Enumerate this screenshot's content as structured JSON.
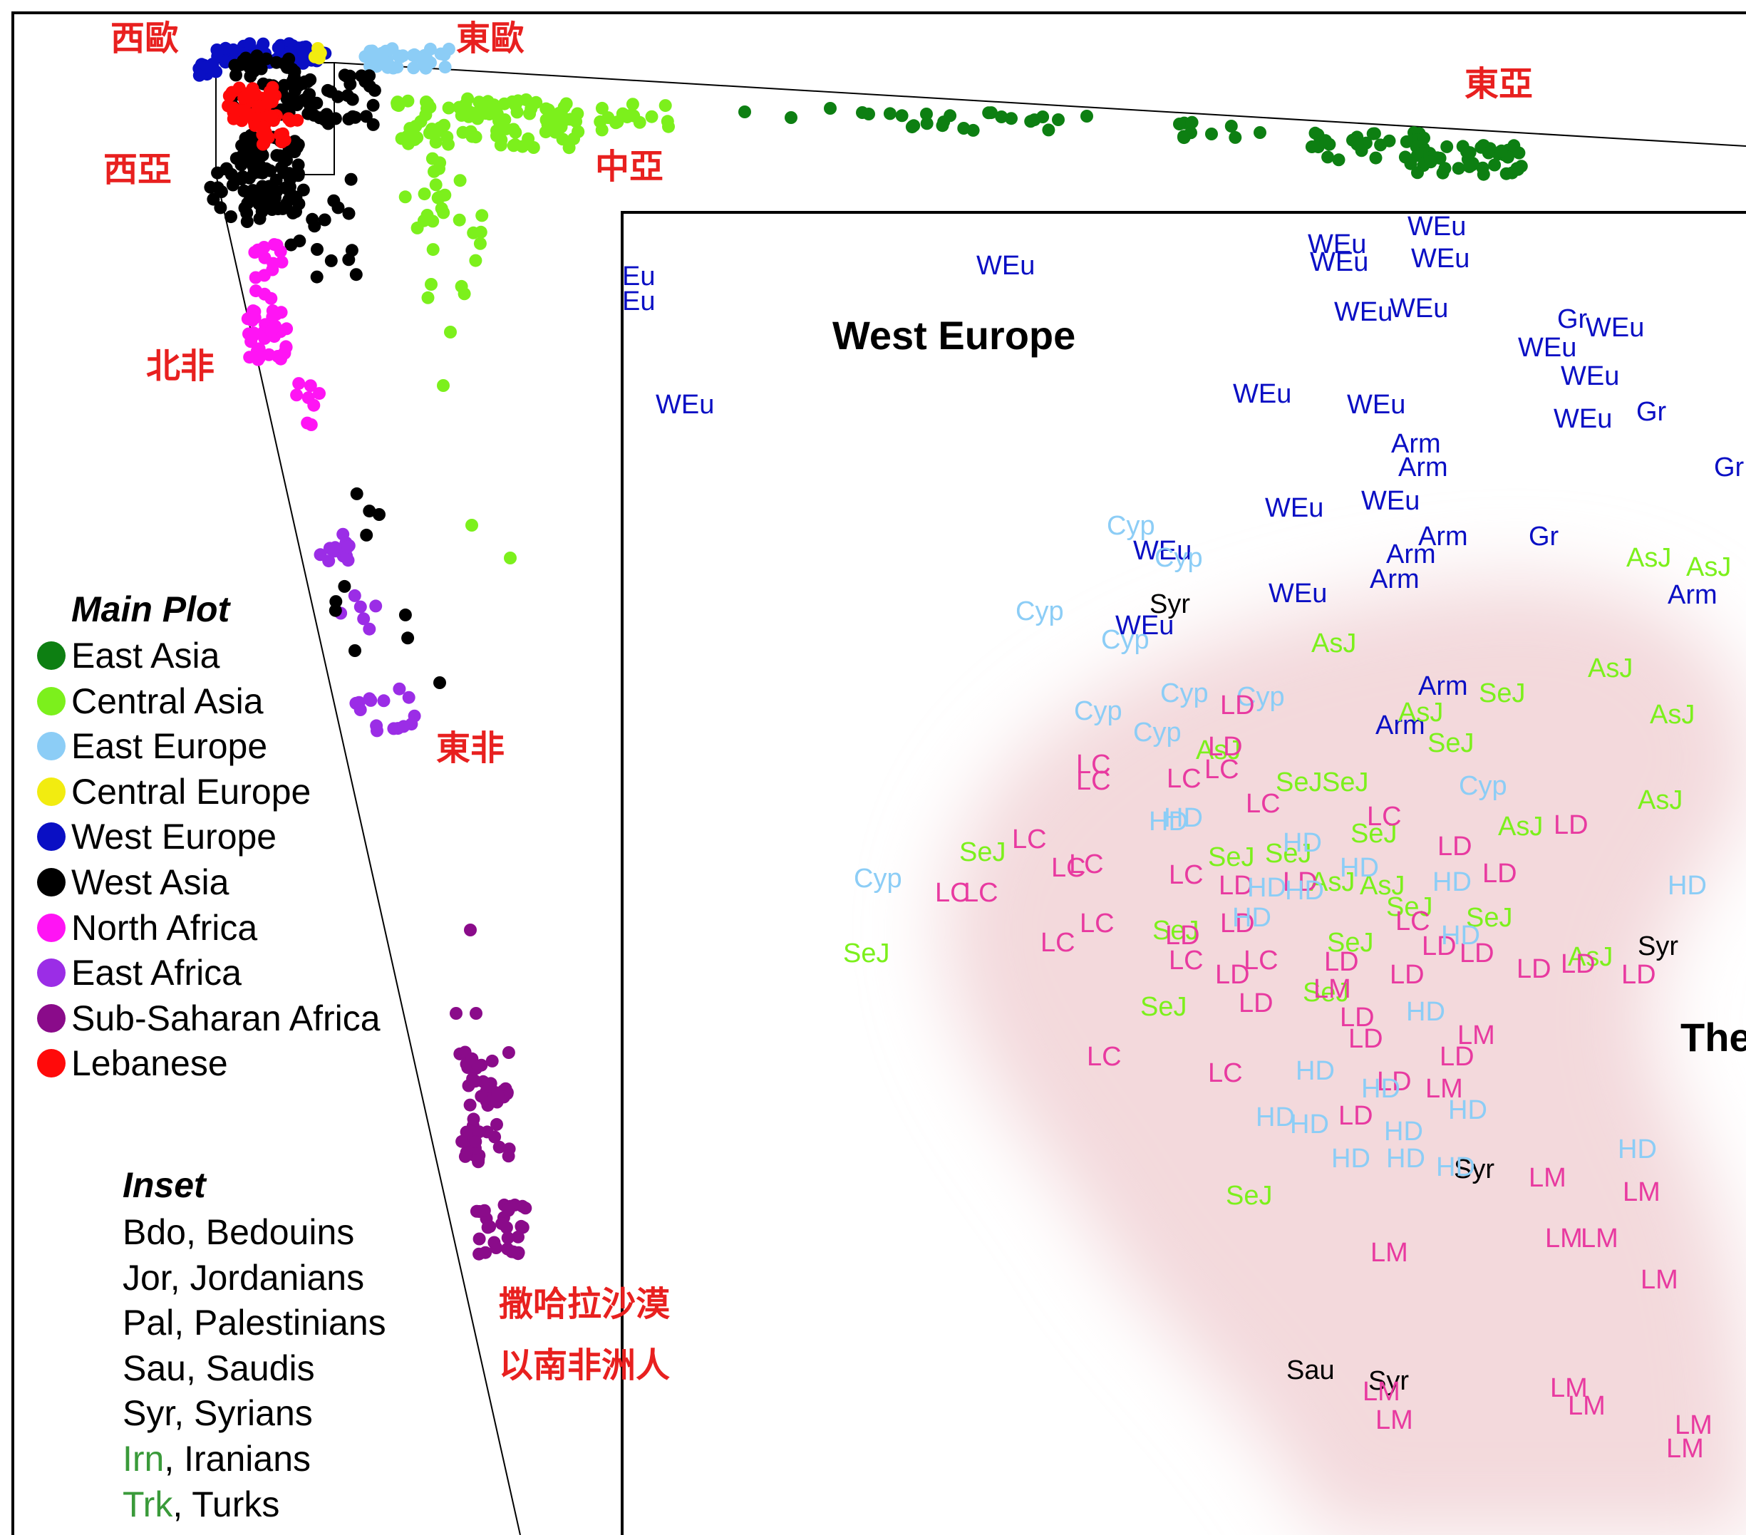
{
  "region_labels": {
    "west_europe": "西歐",
    "east_europe": "東歐",
    "east_asia": "東亞",
    "west_asia": "西亞",
    "central_asia": "中亞",
    "north_africa": "北非",
    "east_africa": "東非",
    "sub_saharan_1": "撒哈拉沙漠",
    "sub_saharan_2": "以南非洲人"
  },
  "legend": {
    "title": "Main Plot",
    "items": [
      {
        "label": "East Asia",
        "color": "#0d7f12"
      },
      {
        "label": "Central Asia",
        "color": "#7cf01c"
      },
      {
        "label": "East Europe",
        "color": "#8ccdf6"
      },
      {
        "label": "Central Europe",
        "color": "#f2ec10"
      },
      {
        "label": "West Europe",
        "color": "#0a0fc4"
      },
      {
        "label": "West Asia",
        "color": "#000000"
      },
      {
        "label": "North Africa",
        "color": "#ff14f4"
      },
      {
        "label": "East Africa",
        "color": "#9b2de6"
      },
      {
        "label": "Sub-Saharan Africa",
        "color": "#8a0b8a"
      },
      {
        "label": "Lebanese",
        "color": "#ff0a0a"
      }
    ]
  },
  "inset_legend": {
    "title": "Inset",
    "items": [
      {
        "code": "Bdo",
        "name": ", Bedouins",
        "color": "#000000"
      },
      {
        "code": "Jor",
        "name": ", Jordanians",
        "color": "#000000"
      },
      {
        "code": "Pal",
        "name": ", Palestinians",
        "color": "#000000"
      },
      {
        "code": "Sau",
        "name": ", Saudis",
        "color": "#000000"
      },
      {
        "code": "Syr",
        "name": ", Syrians",
        "color": "#000000"
      },
      {
        "code": "Irn",
        "name": ", Iranians",
        "color": "#3a9a3a"
      },
      {
        "code": "Trk",
        "name": ", Turks",
        "color": "#3a9a3a"
      }
    ]
  },
  "chart_data": {
    "type": "scatter",
    "title": "",
    "xlabel": "",
    "ylabel": "",
    "main_plot_series": [
      {
        "name": "East Asia",
        "color": "#0d7f12"
      },
      {
        "name": "Central Asia",
        "color": "#7cf01c"
      },
      {
        "name": "East Europe",
        "color": "#8ccdf6"
      },
      {
        "name": "Central Europe",
        "color": "#f2ec10"
      },
      {
        "name": "West Europe",
        "color": "#0a0fc4"
      },
      {
        "name": "West Asia",
        "color": "#000000"
      },
      {
        "name": "North Africa",
        "color": "#ff14f4"
      },
      {
        "name": "East Africa",
        "color": "#9b2de6"
      },
      {
        "name": "Sub-Saharan Africa",
        "color": "#8a0b8a"
      },
      {
        "name": "Lebanese",
        "color": "#ff0a0a"
      }
    ],
    "inset_title": "West Europe",
    "inset_title_2": "The",
    "inset_label_colors": {
      "WEu": "#0a0fc4",
      "Arm": "#0a0fc4",
      "Gr": "#0a0fc4",
      "Cyp": "#8ccdf6",
      "HD": "#8ccdf6",
      "AsJ": "#7cf01c",
      "SeJ": "#7cf01c",
      "LC": "#e83aa0",
      "LD": "#e83aa0",
      "LM": "#e83aa0",
      "Syr": "#000000",
      "Sau": "#000000"
    }
  }
}
